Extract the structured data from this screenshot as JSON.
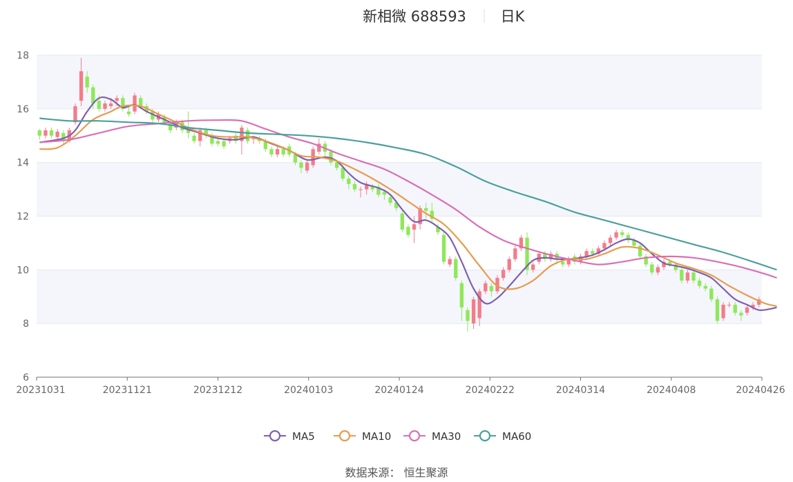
{
  "title": {
    "name": "新相微 688593",
    "period": "日K"
  },
  "source": "数据来源： 恒生聚源",
  "colors": {
    "up": "#f47c8a",
    "down": "#8ee85a",
    "MA5": "#7e5fae",
    "MA10": "#e89a4d",
    "MA30": "#d96fb5",
    "MA60": "#4a9f9c",
    "band": "#f4f6fb",
    "grid": "#e4e8f0",
    "axis": "#6e7079"
  },
  "chart_data": {
    "type": "candlestick",
    "ylim": [
      6,
      18
    ],
    "yticks": [
      "6",
      "8",
      "10",
      "12",
      "14",
      "16",
      "18"
    ],
    "xticks": [
      "20231031",
      "20231121",
      "20231212",
      "20240103",
      "20240124",
      "20240222",
      "20240314",
      "20240408",
      "20240426"
    ],
    "legend": [
      "MA5",
      "MA10",
      "MA30",
      "MA60"
    ],
    "legend_position": "bottom",
    "candles": [
      [
        15.2,
        15.0,
        15.25,
        14.85
      ],
      [
        15.0,
        15.2,
        15.3,
        14.9
      ],
      [
        15.2,
        15.0,
        15.3,
        14.9
      ],
      [
        14.95,
        15.15,
        15.25,
        14.85
      ],
      [
        15.1,
        14.8,
        15.2,
        14.7
      ],
      [
        14.8,
        15.2,
        15.3,
        14.75
      ],
      [
        15.5,
        16.1,
        16.2,
        15.4
      ],
      [
        16.3,
        17.4,
        17.9,
        16.1
      ],
      [
        17.2,
        16.8,
        17.4,
        16.6
      ],
      [
        16.8,
        16.2,
        16.9,
        16.0
      ],
      [
        16.3,
        16.0,
        16.5,
        15.9
      ],
      [
        16.0,
        16.2,
        16.3,
        15.9
      ],
      [
        16.1,
        16.2,
        16.4,
        16.0
      ],
      [
        16.3,
        16.4,
        16.5,
        16.1
      ],
      [
        16.4,
        16.0,
        16.5,
        15.9
      ],
      [
        15.9,
        15.8,
        16.1,
        15.7
      ],
      [
        15.9,
        16.5,
        16.6,
        15.8
      ],
      [
        16.4,
        16.1,
        16.5,
        16.0
      ],
      [
        16.1,
        15.9,
        16.2,
        15.8
      ],
      [
        15.9,
        15.6,
        16.0,
        15.5
      ],
      [
        15.6,
        15.8,
        15.9,
        15.5
      ],
      [
        15.7,
        15.5,
        15.8,
        15.4
      ],
      [
        15.5,
        15.2,
        15.6,
        15.1
      ],
      [
        15.3,
        15.5,
        15.6,
        15.2
      ],
      [
        15.5,
        15.2,
        15.6,
        15.1
      ],
      [
        15.3,
        15.1,
        15.9,
        14.9
      ],
      [
        15.0,
        14.8,
        15.1,
        14.7
      ],
      [
        14.8,
        15.2,
        15.3,
        14.6
      ],
      [
        15.2,
        15.0,
        15.3,
        14.9
      ],
      [
        15.0,
        14.7,
        15.1,
        14.6
      ],
      [
        14.8,
        14.7,
        14.9,
        14.6
      ],
      [
        14.8,
        14.6,
        14.9,
        14.5
      ],
      [
        14.8,
        14.9,
        15.0,
        14.7
      ],
      [
        15.0,
        14.8,
        15.1,
        14.7
      ],
      [
        14.8,
        15.3,
        15.4,
        14.3
      ],
      [
        15.2,
        14.8,
        15.3,
        14.7
      ],
      [
        14.9,
        14.9,
        15.0,
        14.7
      ],
      [
        14.9,
        14.8,
        15.0,
        14.7
      ],
      [
        14.8,
        14.5,
        14.9,
        14.4
      ],
      [
        14.5,
        14.3,
        14.6,
        14.2
      ],
      [
        14.3,
        14.5,
        14.6,
        14.2
      ],
      [
        14.5,
        14.3,
        14.6,
        14.2
      ],
      [
        14.6,
        14.3,
        14.7,
        14.2
      ],
      [
        14.3,
        14.0,
        14.4,
        13.9
      ],
      [
        14.0,
        13.8,
        14.1,
        13.6
      ],
      [
        13.7,
        14.0,
        14.1,
        13.6
      ],
      [
        13.9,
        14.5,
        14.6,
        13.8
      ],
      [
        14.4,
        14.7,
        14.9,
        14.3
      ],
      [
        14.7,
        14.4,
        14.8,
        14.2
      ],
      [
        14.4,
        14.0,
        14.5,
        13.9
      ],
      [
        14.0,
        13.8,
        14.1,
        13.7
      ],
      [
        13.8,
        13.4,
        13.9,
        13.3
      ],
      [
        13.4,
        13.2,
        13.5,
        13.0
      ],
      [
        13.2,
        13.0,
        13.3,
        12.9
      ],
      [
        13.0,
        13.0,
        13.1,
        12.7
      ],
      [
        13.0,
        13.2,
        13.3,
        12.8
      ],
      [
        13.1,
        13.0,
        13.2,
        12.9
      ],
      [
        13.1,
        12.8,
        13.2,
        12.7
      ],
      [
        12.9,
        12.8,
        13.0,
        12.6
      ],
      [
        12.7,
        12.5,
        12.8,
        12.4
      ],
      [
        12.5,
        12.3,
        12.6,
        12.2
      ],
      [
        12.1,
        11.5,
        12.2,
        11.4
      ],
      [
        11.6,
        11.3,
        11.7,
        11.2
      ],
      [
        11.5,
        11.7,
        12.0,
        11.0
      ],
      [
        11.7,
        12.3,
        12.4,
        11.5
      ],
      [
        12.3,
        12.2,
        12.5,
        11.9
      ],
      [
        12.2,
        11.9,
        12.5,
        11.8
      ],
      [
        11.6,
        11.4,
        11.7,
        11.3
      ],
      [
        11.3,
        10.3,
        11.4,
        10.2
      ],
      [
        10.2,
        10.4,
        10.5,
        10.1
      ],
      [
        10.4,
        9.7,
        10.5,
        9.6
      ],
      [
        9.5,
        8.6,
        9.6,
        8.1
      ],
      [
        8.5,
        8.1,
        8.6,
        7.7
      ],
      [
        8.0,
        8.9,
        9.0,
        7.8
      ],
      [
        8.2,
        9.2,
        9.3,
        7.9
      ],
      [
        9.2,
        9.5,
        9.6,
        9.1
      ],
      [
        9.4,
        9.2,
        9.5,
        9.0
      ],
      [
        9.2,
        9.7,
        9.8,
        9.1
      ],
      [
        9.7,
        10.0,
        10.1,
        9.6
      ],
      [
        10.0,
        10.4,
        10.5,
        9.9
      ],
      [
        10.4,
        10.8,
        10.9,
        10.3
      ],
      [
        10.8,
        11.2,
        11.3,
        10.7
      ],
      [
        11.2,
        10.0,
        11.4,
        9.8
      ],
      [
        10.0,
        10.2,
        10.3,
        9.9
      ],
      [
        10.3,
        10.6,
        10.7,
        10.2
      ],
      [
        10.6,
        10.4,
        10.7,
        10.3
      ],
      [
        10.4,
        10.6,
        10.7,
        10.3
      ],
      [
        10.6,
        10.4,
        10.7,
        10.2
      ],
      [
        10.3,
        10.2,
        10.4,
        10.1
      ],
      [
        10.2,
        10.4,
        10.5,
        10.1
      ],
      [
        10.5,
        10.3,
        10.6,
        10.2
      ],
      [
        10.3,
        10.5,
        10.6,
        10.2
      ],
      [
        10.5,
        10.7,
        10.8,
        10.4
      ],
      [
        10.7,
        10.6,
        10.8,
        10.5
      ],
      [
        10.6,
        10.8,
        10.9,
        10.5
      ],
      [
        10.8,
        11.0,
        11.1,
        10.7
      ],
      [
        11.0,
        11.2,
        11.3,
        10.9
      ],
      [
        11.2,
        11.4,
        11.5,
        11.1
      ],
      [
        11.4,
        11.3,
        11.5,
        11.2
      ],
      [
        11.3,
        11.1,
        11.4,
        11.0
      ],
      [
        11.1,
        10.9,
        11.2,
        10.8
      ],
      [
        10.9,
        10.5,
        11.0,
        10.4
      ],
      [
        10.5,
        10.2,
        10.6,
        10.1
      ],
      [
        10.2,
        9.9,
        10.3,
        9.8
      ],
      [
        9.9,
        10.1,
        10.2,
        9.8
      ],
      [
        10.1,
        10.3,
        10.4,
        10.0
      ],
      [
        10.3,
        10.2,
        10.4,
        10.1
      ],
      [
        10.2,
        10.0,
        10.3,
        9.9
      ],
      [
        10.0,
        9.6,
        10.1,
        9.5
      ],
      [
        9.6,
        9.9,
        10.0,
        9.5
      ],
      [
        9.9,
        9.6,
        10.0,
        9.5
      ],
      [
        9.6,
        9.4,
        9.7,
        9.3
      ],
      [
        9.4,
        9.3,
        9.5,
        9.2
      ],
      [
        9.3,
        8.9,
        9.4,
        8.8
      ],
      [
        8.9,
        8.1,
        9.0,
        8.0
      ],
      [
        8.2,
        8.7,
        8.8,
        8.1
      ],
      [
        8.7,
        8.7,
        8.8,
        8.6
      ],
      [
        8.7,
        8.4,
        8.8,
        8.3
      ],
      [
        8.4,
        8.3,
        8.5,
        8.1
      ],
      [
        8.4,
        8.6,
        8.7,
        8.3
      ],
      [
        8.6,
        8.7,
        8.8,
        8.5
      ],
      [
        8.7,
        8.9,
        9.0,
        8.6
      ]
    ],
    "series": [
      {
        "name": "MA5",
        "points": [
          [
            0,
            14.75
          ],
          [
            4,
            14.9
          ],
          [
            6,
            15.2
          ],
          [
            8,
            15.9
          ],
          [
            10,
            16.4
          ],
          [
            12,
            16.35
          ],
          [
            14,
            16.05
          ],
          [
            16,
            16.15
          ],
          [
            18,
            15.9
          ],
          [
            20,
            15.7
          ],
          [
            22,
            15.5
          ],
          [
            24,
            15.3
          ],
          [
            27,
            15.1
          ],
          [
            30,
            14.9
          ],
          [
            33,
            14.85
          ],
          [
            36,
            14.95
          ],
          [
            39,
            14.7
          ],
          [
            42,
            14.45
          ],
          [
            45,
            14.1
          ],
          [
            48,
            14.2
          ],
          [
            50,
            14.05
          ],
          [
            52,
            13.6
          ],
          [
            54,
            13.25
          ],
          [
            57,
            13.05
          ],
          [
            59,
            12.8
          ],
          [
            61,
            12.25
          ],
          [
            63,
            11.8
          ],
          [
            65,
            11.85
          ],
          [
            67,
            11.6
          ],
          [
            69,
            11.2
          ],
          [
            71,
            10.3
          ],
          [
            73,
            9.3
          ],
          [
            75,
            8.75
          ],
          [
            77,
            8.95
          ],
          [
            79,
            9.4
          ],
          [
            81,
            9.9
          ],
          [
            83,
            10.35
          ],
          [
            85,
            10.45
          ],
          [
            87,
            10.4
          ],
          [
            89,
            10.4
          ],
          [
            91,
            10.45
          ],
          [
            93,
            10.55
          ],
          [
            95,
            10.75
          ],
          [
            97,
            11.0
          ],
          [
            99,
            11.15
          ],
          [
            101,
            11.0
          ],
          [
            103,
            10.6
          ],
          [
            105,
            10.25
          ],
          [
            107,
            10.15
          ],
          [
            109,
            10.05
          ],
          [
            111,
            9.9
          ],
          [
            113,
            9.7
          ],
          [
            115,
            9.3
          ],
          [
            117,
            8.9
          ],
          [
            119,
            8.7
          ],
          [
            121,
            8.5
          ],
          [
            123,
            8.55
          ],
          [
            124,
            8.6
          ]
        ]
      },
      {
        "name": "MA10",
        "points": [
          [
            0,
            14.5
          ],
          [
            3,
            14.55
          ],
          [
            6,
            15.0
          ],
          [
            9,
            15.6
          ],
          [
            12,
            15.9
          ],
          [
            14,
            16.1
          ],
          [
            17,
            16.1
          ],
          [
            20,
            15.8
          ],
          [
            23,
            15.5
          ],
          [
            26,
            15.2
          ],
          [
            29,
            15.0
          ],
          [
            32,
            14.95
          ],
          [
            35,
            14.95
          ],
          [
            38,
            14.8
          ],
          [
            41,
            14.55
          ],
          [
            44,
            14.25
          ],
          [
            47,
            14.2
          ],
          [
            50,
            14.05
          ],
          [
            53,
            13.75
          ],
          [
            56,
            13.4
          ],
          [
            59,
            13.0
          ],
          [
            62,
            12.55
          ],
          [
            65,
            12.1
          ],
          [
            68,
            11.7
          ],
          [
            71,
            11.0
          ],
          [
            74,
            10.15
          ],
          [
            77,
            9.4
          ],
          [
            80,
            9.3
          ],
          [
            83,
            9.6
          ],
          [
            86,
            10.15
          ],
          [
            89,
            10.4
          ],
          [
            92,
            10.4
          ],
          [
            95,
            10.6
          ],
          [
            98,
            10.85
          ],
          [
            101,
            10.8
          ],
          [
            104,
            10.55
          ],
          [
            107,
            10.25
          ],
          [
            110,
            10.05
          ],
          [
            113,
            9.8
          ],
          [
            116,
            9.4
          ],
          [
            119,
            9.05
          ],
          [
            122,
            8.75
          ],
          [
            124,
            8.65
          ]
        ]
      },
      {
        "name": "MA30",
        "points": [
          [
            0,
            14.75
          ],
          [
            5,
            14.85
          ],
          [
            10,
            15.1
          ],
          [
            15,
            15.35
          ],
          [
            20,
            15.45
          ],
          [
            25,
            15.55
          ],
          [
            30,
            15.58
          ],
          [
            34,
            15.55
          ],
          [
            38,
            15.25
          ],
          [
            42,
            14.95
          ],
          [
            46,
            14.7
          ],
          [
            50,
            14.35
          ],
          [
            54,
            14.05
          ],
          [
            58,
            13.75
          ],
          [
            62,
            13.3
          ],
          [
            66,
            12.8
          ],
          [
            70,
            12.25
          ],
          [
            74,
            11.6
          ],
          [
            78,
            11.1
          ],
          [
            82,
            10.8
          ],
          [
            86,
            10.55
          ],
          [
            90,
            10.35
          ],
          [
            94,
            10.2
          ],
          [
            98,
            10.3
          ],
          [
            102,
            10.45
          ],
          [
            106,
            10.5
          ],
          [
            110,
            10.45
          ],
          [
            114,
            10.3
          ],
          [
            118,
            10.1
          ],
          [
            122,
            9.85
          ],
          [
            124,
            9.7
          ]
        ]
      },
      {
        "name": "MA60",
        "points": [
          [
            0,
            15.65
          ],
          [
            5,
            15.55
          ],
          [
            10,
            15.55
          ],
          [
            15,
            15.5
          ],
          [
            20,
            15.45
          ],
          [
            25,
            15.3
          ],
          [
            30,
            15.2
          ],
          [
            35,
            15.1
          ],
          [
            40,
            15.05
          ],
          [
            45,
            15.0
          ],
          [
            50,
            14.9
          ],
          [
            55,
            14.75
          ],
          [
            60,
            14.55
          ],
          [
            65,
            14.3
          ],
          [
            70,
            13.85
          ],
          [
            75,
            13.3
          ],
          [
            80,
            12.9
          ],
          [
            85,
            12.55
          ],
          [
            90,
            12.15
          ],
          [
            95,
            11.85
          ],
          [
            100,
            11.55
          ],
          [
            105,
            11.25
          ],
          [
            110,
            10.95
          ],
          [
            115,
            10.65
          ],
          [
            120,
            10.3
          ],
          [
            124,
            10.0
          ]
        ]
      }
    ]
  }
}
